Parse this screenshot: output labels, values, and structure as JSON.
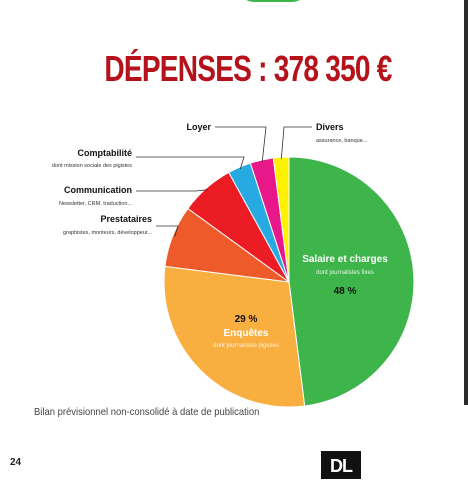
{
  "page": {
    "title": "DÉPENSES : 378 350 €",
    "footnote": "Bilan  prévisionnel non-consolidé à date de publication",
    "page_number": "24",
    "logo": "DL"
  },
  "colors": {
    "title": "#b5121b",
    "salaire": "#3db54a",
    "enquetes": "#f9ae40",
    "prestataires": "#ef5a2a",
    "communication": "#ec1c24",
    "comptabilite": "#27aae1",
    "loyer": "#e8178a",
    "divers": "#fff200"
  },
  "chart_data": {
    "type": "pie",
    "title": "DÉPENSES : 378 350 €",
    "slices": [
      {
        "key": "salaire",
        "label": "Salaire et charges",
        "sublabel": "dont journalistes fixes",
        "value": 48,
        "value_label": "48 %",
        "color": "#3db54a"
      },
      {
        "key": "enquetes",
        "label": "Enquêtes",
        "sublabel": "dont journalistes pigistes",
        "value": 29,
        "value_label": "29 %",
        "color": "#f9ae40"
      },
      {
        "key": "prestataires",
        "label": "Prestataires",
        "sublabel": "graphistes, monteurs, développeur...",
        "value": 8,
        "color": "#ef5a2a"
      },
      {
        "key": "communication",
        "label": "Communication",
        "sublabel": "Newsletter, CRM, traduction...",
        "value": 7,
        "color": "#ec1c24"
      },
      {
        "key": "comptabilite",
        "label": "Comptabilité",
        "sublabel": "dont mission sociale des pigistes",
        "value": 3,
        "color": "#27aae1"
      },
      {
        "key": "loyer",
        "label": "Loyer",
        "sublabel": "",
        "value": 3,
        "color": "#e8178a"
      },
      {
        "key": "divers",
        "label": "Divers",
        "sublabel": "assurance, banque...",
        "value": 2,
        "color": "#fff200"
      }
    ]
  }
}
